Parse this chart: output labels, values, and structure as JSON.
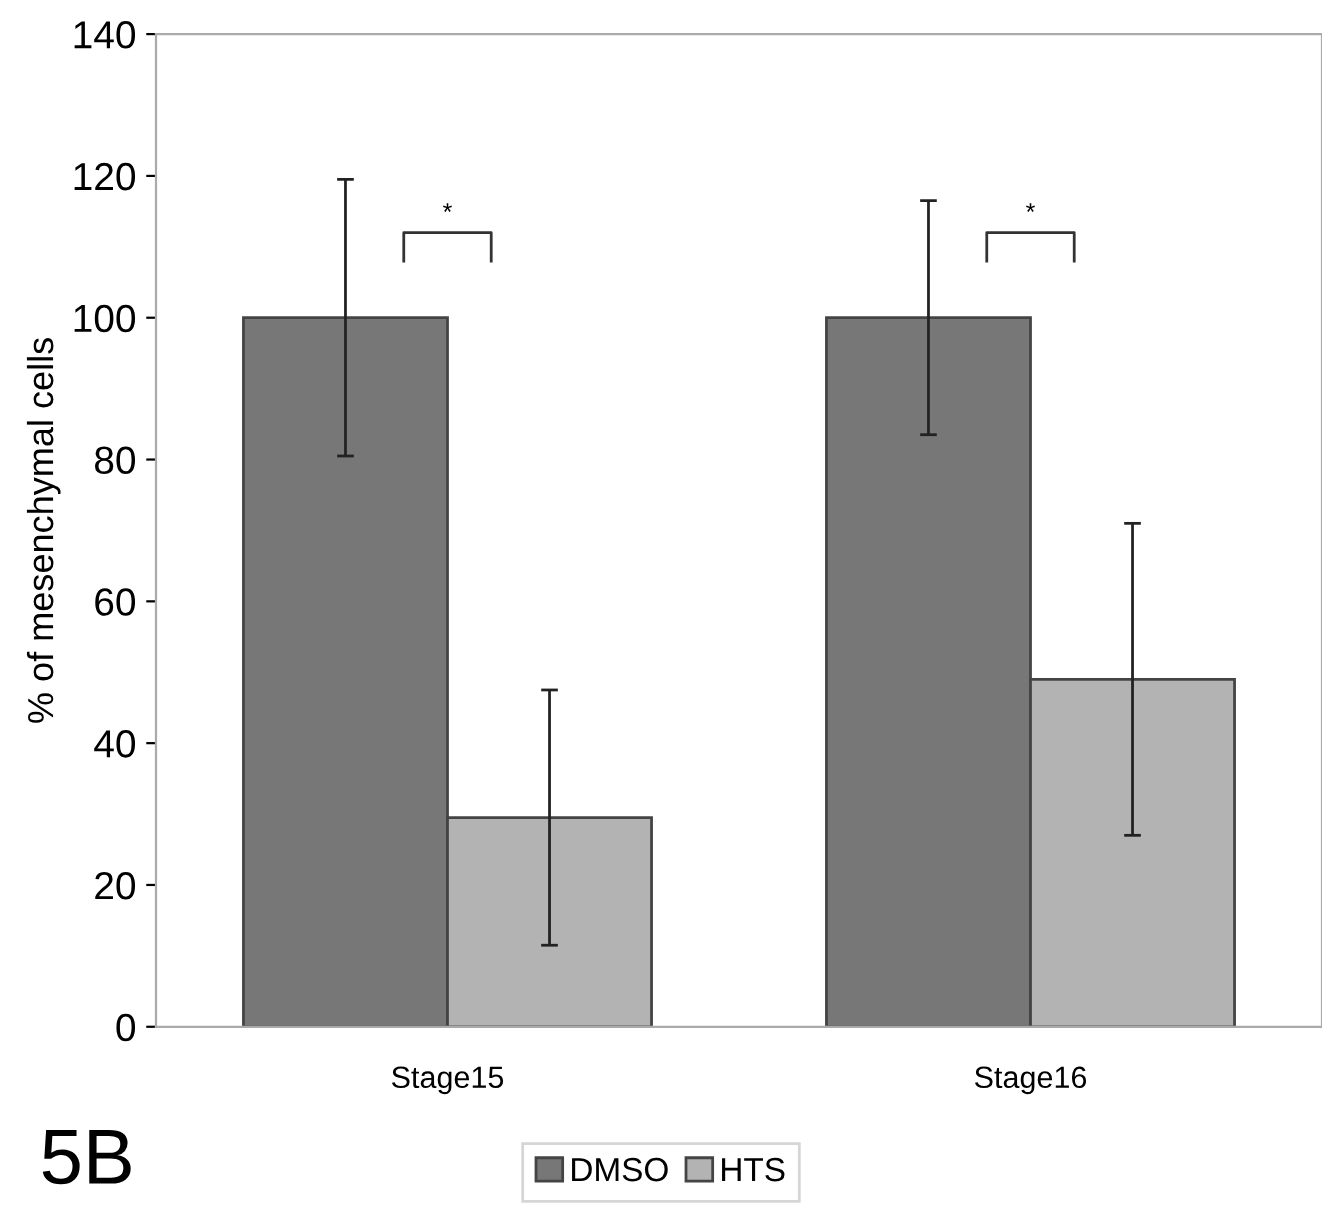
{
  "chart_data": {
    "type": "bar",
    "ylabel": "% of mesenchymal cells",
    "categories": [
      "Stage15",
      "Stage16"
    ],
    "series": [
      {
        "name": "DMSO",
        "color": "#777777",
        "values": [
          100,
          100
        ],
        "errors": [
          19.5,
          16.5
        ]
      },
      {
        "name": "HTS",
        "color": "#b3b3b3",
        "values": [
          29.5,
          49
        ],
        "errors": [
          18,
          22
        ]
      }
    ],
    "ylim": [
      0,
      140
    ],
    "yticks": [
      0,
      20,
      40,
      60,
      80,
      100,
      120,
      140
    ],
    "grid": false,
    "legend": "bottom",
    "annotations": [
      "*",
      "*",
      "5B"
    ]
  }
}
